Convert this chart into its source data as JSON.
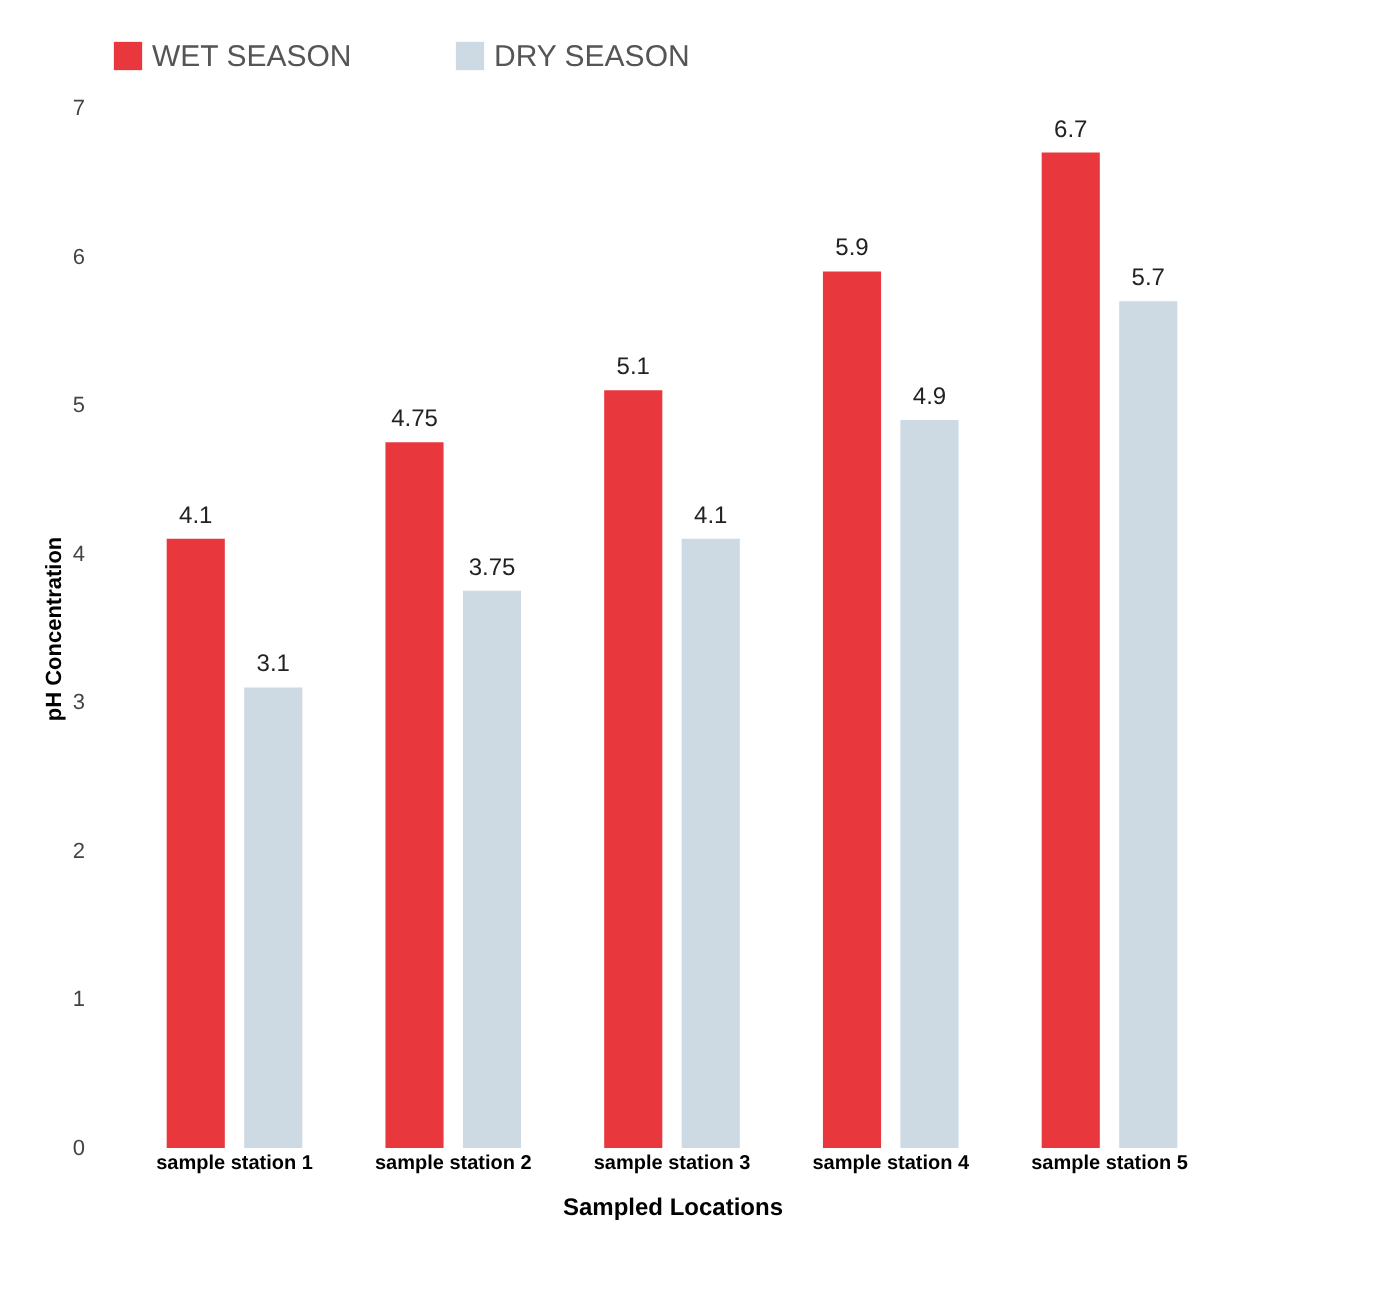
{
  "chart_data": {
    "type": "bar",
    "xlabel": "Sampled Locations",
    "ylabel": "pH Concentration",
    "categories": [
      "sample station 1",
      "sample station 2",
      "sample station 3",
      "sample station 4",
      "sample station 5"
    ],
    "series": [
      {
        "name": "WET SEASON",
        "color": "#e8383d",
        "values": [
          4.1,
          4.75,
          5.1,
          5.9,
          6.7
        ]
      },
      {
        "name": "DRY SEASON",
        "color": "#cdd9e3",
        "values": [
          3.1,
          3.75,
          4.1,
          4.9,
          5.7
        ]
      }
    ],
    "ylim": [
      0,
      7
    ],
    "yticks": [
      0,
      1,
      2,
      3,
      4,
      5,
      6,
      7
    ],
    "grid": false,
    "legend": "top",
    "data_labels": true
  }
}
